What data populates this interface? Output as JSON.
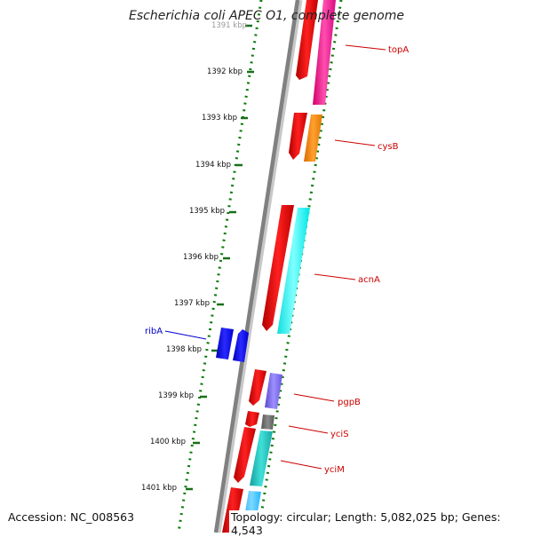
{
  "title": "Escherichia coli APEC O1, complete genome",
  "footer": {
    "accession": "Accession: NC_008563",
    "topology": "Topology: circular; Length: 5,082,025 bp; Genes: 4,543"
  },
  "scale": {
    "unit": "kbp",
    "ticks": [
      "1391 kbp",
      "1392 kbp",
      "1393 kbp",
      "1394 kbp",
      "1395 kbp",
      "1396 kbp",
      "1397 kbp",
      "1398 kbp",
      "1399 kbp",
      "1400 kbp",
      "1401 kbp"
    ]
  },
  "genes": [
    {
      "name": "topA",
      "color": "#cc0000",
      "feature_color": "#ff1493"
    },
    {
      "name": "cysB",
      "color": "#cc0000",
      "feature_color": "#ff8c00"
    },
    {
      "name": "acnA",
      "color": "#cc0000",
      "feature_color": "#00ffff"
    },
    {
      "name": "ribA",
      "color": "#0000cc",
      "feature_color": "#0000ff"
    },
    {
      "name": "pgpB",
      "color": "#cc0000",
      "feature_color": "#7b68ee"
    },
    {
      "name": "yciS",
      "color": "#cc0000",
      "feature_color": "#696969"
    },
    {
      "name": "yciM",
      "color": "#cc0000",
      "feature_color": "#20b2aa"
    }
  ],
  "colors": {
    "backbone": "#808080",
    "gc_dots": "#006400",
    "cds_strand": "#ff0000"
  }
}
